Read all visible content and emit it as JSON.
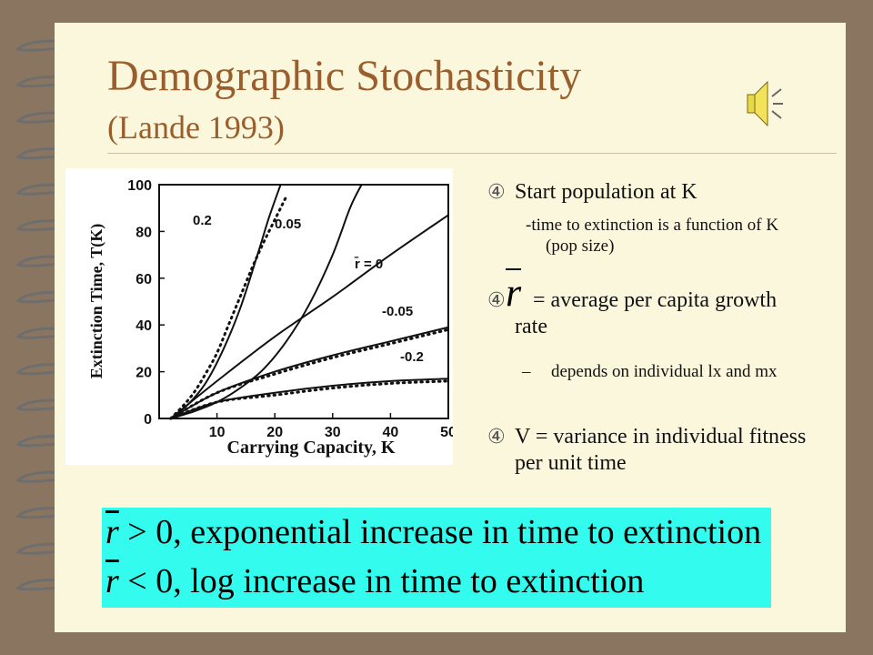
{
  "title": {
    "line1": "Demographic Stochasticity",
    "line2": "(Lande 1993)"
  },
  "icons": {
    "speaker": "speaker-sound-icon",
    "bullet": "notebook-bullet-icon"
  },
  "colors": {
    "title": "#9a5e2c",
    "slide_bg": "#fbf7dd",
    "frame": "#8a7660",
    "formula_box": "#33fbee"
  },
  "bullets": [
    {
      "text": "Start population at K",
      "sub": "-time to extinction is a function of K (pop size)"
    },
    {
      "symbol": "r",
      "text": "= average per capita growth rate",
      "sub_prefix": "–",
      "sub": "depends on individual lx and mx"
    },
    {
      "text": "V = variance in individual fitness per unit time"
    }
  ],
  "formulas": [
    {
      "symbol": "r",
      "relation": "> 0,",
      "text": "exponential increase in time to extinction"
    },
    {
      "symbol": "r",
      "relation": "< 0,",
      "text": "log increase in time to extinction"
    }
  ],
  "chart_data": {
    "type": "line",
    "xlabel": "Carrying Capacity, K",
    "ylabel": "Extinction Time, T(K)",
    "xlim": [
      0,
      50
    ],
    "ylim": [
      0,
      100
    ],
    "xticks": [
      10,
      20,
      30,
      40,
      50
    ],
    "yticks": [
      0,
      20,
      40,
      60,
      80,
      100
    ],
    "grid": false,
    "legend": "none",
    "series": [
      {
        "name": "0.2",
        "style": "solid",
        "x": [
          2,
          6,
          10,
          14,
          18,
          22,
          26,
          30,
          33,
          35
        ],
        "y": [
          0,
          3,
          7,
          13,
          21,
          33,
          49,
          70,
          90,
          100
        ]
      },
      {
        "name": "0.05",
        "style": "solid",
        "x": [
          2,
          5,
          8,
          11,
          14,
          17,
          19,
          21
        ],
        "y": [
          0,
          6,
          15,
          29,
          47,
          70,
          86,
          100
        ]
      },
      {
        "style": "dotted",
        "x": [
          2,
          4,
          6,
          8,
          10,
          12,
          14,
          16,
          18,
          20,
          22
        ],
        "y": [
          0,
          5,
          11,
          19,
          28,
          40,
          52,
          64,
          75,
          85,
          95
        ]
      },
      {
        "name": "r̄ = 0",
        "style": "solid",
        "x": [
          2,
          10,
          20,
          30,
          40,
          50
        ],
        "y": [
          0,
          16,
          35,
          52,
          70,
          87
        ]
      },
      {
        "name": "-0.05",
        "style": "solid",
        "x": [
          2,
          10,
          20,
          30,
          40,
          50
        ],
        "y": [
          0,
          11,
          20,
          27,
          33,
          39
        ]
      },
      {
        "style": "dotted",
        "x": [
          2,
          10,
          20,
          30,
          40,
          50
        ],
        "y": [
          0,
          11,
          19,
          26,
          32,
          38
        ]
      },
      {
        "name": "-0.2",
        "style": "solid",
        "x": [
          2,
          10,
          20,
          30,
          40,
          50
        ],
        "y": [
          0,
          7,
          11,
          14,
          16,
          17
        ]
      },
      {
        "style": "dotted",
        "x": [
          2,
          10,
          20,
          30,
          40,
          50
        ],
        "y": [
          0,
          7,
          10,
          13,
          15,
          16
        ]
      }
    ]
  }
}
